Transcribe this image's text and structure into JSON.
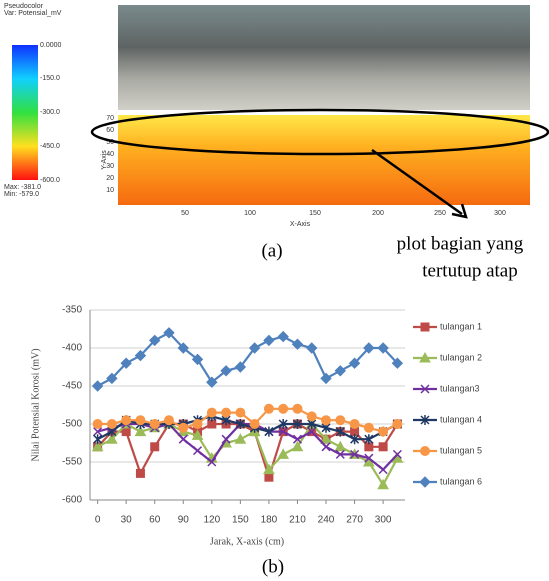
{
  "panel_a": {
    "colorbar_title": "Pseudocolor",
    "colorbar_var": "Var: Potensial_mV",
    "colorbar_labels": [
      "0.0000",
      "-150.0",
      "-300.0",
      "-450.0",
      "-600.0"
    ],
    "max_label": "Max: -381.0",
    "min_label": "Min: -579.0",
    "y_ticks": [
      "70",
      "60",
      "50",
      "40",
      "30",
      "20",
      "10"
    ],
    "x_ticks": [
      "50",
      "100",
      "150",
      "200",
      "250",
      "300"
    ],
    "x_label": "X-Axis",
    "y_label": "Y-Axis",
    "annotation": [
      "plot bagian yang",
      "tertutup atap"
    ],
    "caption": "(a)"
  },
  "chart_data": {
    "type": "line",
    "x": [
      0,
      15,
      30,
      45,
      60,
      75,
      90,
      105,
      120,
      135,
      150,
      165,
      180,
      195,
      210,
      225,
      240,
      255,
      270,
      285,
      300,
      315
    ],
    "xlim": [
      -8,
      323
    ],
    "xticks": [
      0,
      30,
      60,
      90,
      120,
      150,
      180,
      210,
      240,
      270,
      300
    ],
    "ylim": [
      -600,
      -350
    ],
    "yticks": [
      -600,
      -550,
      -500,
      -450,
      -400,
      -350
    ],
    "x_label": "Jarak, X-axis (cm)",
    "y_label": "Nilai Potensial Korosi (mV)",
    "legend": "right",
    "caption": "(b)",
    "series": [
      {
        "name": "tulangan 1",
        "color": "#be4b48",
        "marker": "square",
        "values": [
          -530,
          -510,
          -510,
          -565,
          -530,
          -500,
          -500,
          -510,
          -500,
          -500,
          -500,
          -510,
          -570,
          -510,
          -500,
          -510,
          -520,
          -510,
          -510,
          -530,
          -530,
          -500
        ]
      },
      {
        "name": "tulangan 2",
        "color": "#9bbb59",
        "marker": "triangle",
        "values": [
          -530,
          -520,
          -500,
          -510,
          -505,
          -500,
          -510,
          -515,
          -545,
          -525,
          -520,
          -510,
          -560,
          -540,
          -530,
          -500,
          -520,
          -530,
          -540,
          -550,
          -580,
          -545
        ]
      },
      {
        "name": "tulangan3",
        "color": "#7030a0",
        "marker": "x",
        "values": [
          -510,
          -505,
          -500,
          -500,
          -505,
          -500,
          -520,
          -535,
          -550,
          -520,
          -500,
          -500,
          -510,
          -510,
          -520,
          -510,
          -530,
          -540,
          -540,
          -545,
          -560,
          -540
        ]
      },
      {
        "name": "tulangan 4",
        "color": "#1f3864",
        "marker": "star",
        "values": [
          -520,
          -510,
          -495,
          -500,
          -500,
          -500,
          -500,
          -495,
          -490,
          -495,
          -500,
          -505,
          -510,
          -500,
          -500,
          -500,
          -505,
          -510,
          -520,
          -520,
          -510,
          -500
        ]
      },
      {
        "name": "tulangan 5",
        "color": "#f79646",
        "marker": "circle",
        "values": [
          -500,
          -500,
          -495,
          -495,
          -500,
          -495,
          -505,
          -500,
          -485,
          -485,
          -485,
          -500,
          -480,
          -480,
          -480,
          -490,
          -495,
          -495,
          -500,
          -505,
          -510,
          -500
        ]
      },
      {
        "name": "tulangan 6",
        "color": "#4f81bd",
        "marker": "diamond",
        "values": [
          -450,
          -440,
          -420,
          -410,
          -390,
          -380,
          -400,
          -415,
          -445,
          -430,
          -425,
          -400,
          -390,
          -385,
          -395,
          -400,
          -440,
          -430,
          -420,
          -400,
          -400,
          -420
        ]
      }
    ]
  }
}
